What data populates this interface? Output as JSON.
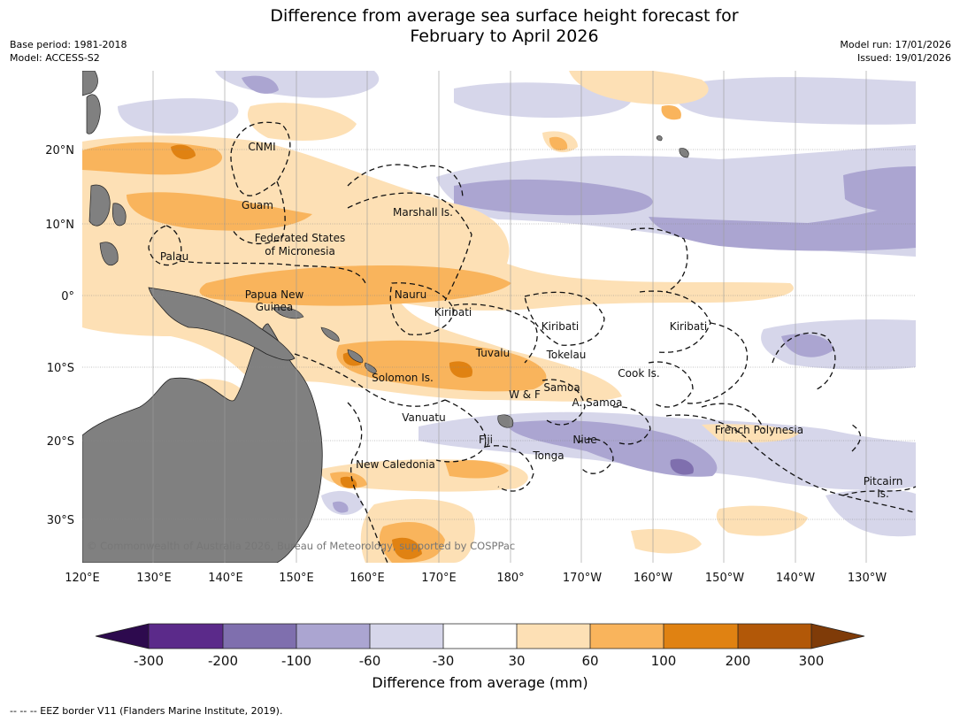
{
  "title_line1": "Difference from average sea surface height forecast for",
  "title_line2": "February to April 2026",
  "base_period": "Base period: 1981-2018",
  "model": "Model: ACCESS-S2",
  "model_run": "Model run: 17/01/2026",
  "issued": "Issued: 19/01/2026",
  "copyright": "© Commonwealth of Australia 2026, Bureau of Meteorology, supported by COSPPac",
  "lat_labels": [
    "20°N",
    "10°N",
    "0°",
    "10°S",
    "20°S",
    "30°S"
  ],
  "lon_labels": [
    "120°E",
    "130°E",
    "140°E",
    "150°E",
    "160°E",
    "170°E",
    "180°",
    "170°W",
    "160°W",
    "150°W",
    "140°W",
    "130°W"
  ],
  "places": [
    {
      "key": "cnmi",
      "name": "CNMI"
    },
    {
      "key": "guam",
      "name": "Guam"
    },
    {
      "key": "marshall",
      "name": "Marshall Is."
    },
    {
      "key": "fsm1",
      "name": "Federated States"
    },
    {
      "key": "fsm2",
      "name": "of Micronesia"
    },
    {
      "key": "palau",
      "name": "Palau"
    },
    {
      "key": "png1",
      "name": "Papua New"
    },
    {
      "key": "png2",
      "name": "Guinea"
    },
    {
      "key": "nauru",
      "name": "Nauru"
    },
    {
      "key": "kiribati_w",
      "name": "Kiribati"
    },
    {
      "key": "kiribati_c",
      "name": "Kiribati"
    },
    {
      "key": "kiribati_e",
      "name": "Kiribati"
    },
    {
      "key": "tuvalu",
      "name": "Tuvalu"
    },
    {
      "key": "tokelau",
      "name": "Tokelau"
    },
    {
      "key": "cook",
      "name": "Cook Is."
    },
    {
      "key": "solomon",
      "name": "Solomon Is."
    },
    {
      "key": "samoa",
      "name": "Samoa"
    },
    {
      "key": "wf",
      "name": "W & F"
    },
    {
      "key": "asamoa",
      "name": "A. Samoa"
    },
    {
      "key": "vanuatu",
      "name": "Vanuatu"
    },
    {
      "key": "fiji",
      "name": "Fiji"
    },
    {
      "key": "niue",
      "name": "Niue"
    },
    {
      "key": "french_poly",
      "name": "French Polynesia"
    },
    {
      "key": "tonga",
      "name": "Tonga"
    },
    {
      "key": "new_caledonia",
      "name": "New Caledonia"
    },
    {
      "key": "pitcairn1",
      "name": "Pitcairn"
    },
    {
      "key": "pitcairn2",
      "name": "Is."
    }
  ],
  "colorbar": {
    "ticks": [
      "-300",
      "-200",
      "-100",
      "-60",
      "-30",
      "30",
      "60",
      "100",
      "200",
      "300"
    ],
    "colors": [
      "#2d0a4e",
      "#5b2a8a",
      "#7f6fae",
      "#aba5d1",
      "#d6d6ea",
      "#ffffff",
      "#fde0b5",
      "#f9b45c",
      "#e08212",
      "#b25808",
      "#7f3b08"
    ],
    "label": "Difference from average (mm)"
  },
  "footer": "--  --  -- EEZ border V11 (Flanders Marine Institute, 2019)."
}
